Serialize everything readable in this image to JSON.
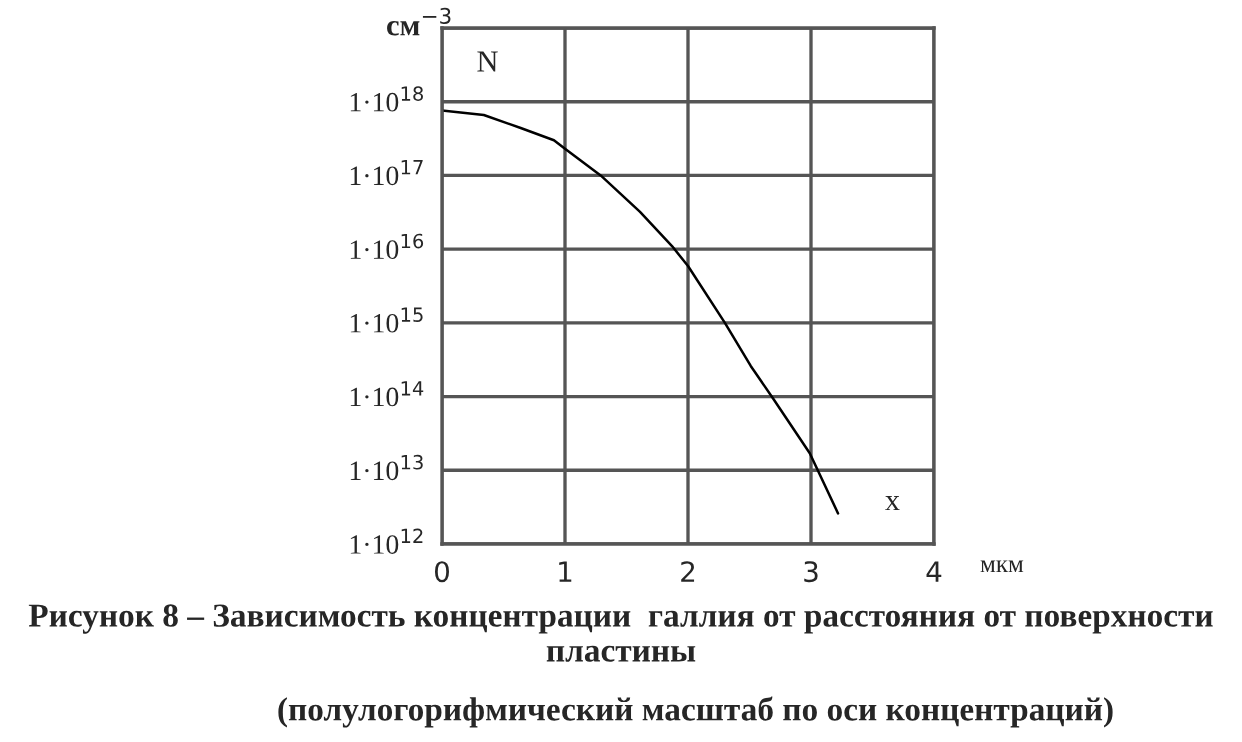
{
  "chart_data": {
    "type": "line",
    "x": [
      0,
      0.34,
      0.64,
      0.91,
      1.0,
      1.29,
      1.61,
      1.87,
      2.0,
      2.3,
      2.51,
      2.7,
      2.99,
      3.22
    ],
    "series": [
      {
        "color": "#000000",
        "values": [
          7.6e+17,
          6.6e+17,
          4.4e+17,
          3e+17,
          2.3e+17,
          1e+17,
          3.2e+16,
          1.1e+16,
          5900000000000000.0,
          1000000000000000.0,
          260000000000000.0,
          90000000000000.0,
          17000000000000.0,
          2600000000000.0
        ]
      }
    ],
    "log": "y",
    "xlim": [
      0,
      4
    ],
    "xticks": [
      0,
      1,
      2,
      3,
      4
    ],
    "ylim": [
      1000000000000.0,
      1e+19
    ],
    "yticks": [
      {
        "value": 1000000000000.0,
        "label": "1·10$^{12}$"
      },
      {
        "value": 10000000000000.0,
        "label": "1·10$^{13}$"
      },
      {
        "value": 100000000000000.0,
        "label": "1·10$^{14}$"
      },
      {
        "value": 1000000000000000.0,
        "label": "1·10$^{15}$"
      },
      {
        "value": 1e+16,
        "label": "1·10$^{16}$"
      },
      {
        "value": 1e+17,
        "label": "1·10$^{17}$"
      },
      {
        "value": 1e+18,
        "label": "1·10$^{18}$"
      },
      {
        "value": 1e+19,
        "label": null
      }
    ],
    "ylabel": "см$^{−3}$",
    "xlabel": "мкм",
    "grid": true,
    "marker": "none",
    "line_style": "solid",
    "annotations": [
      "N",
      "x",
      "Рисунок 8 – Зависимость концентрации  галлия от расстояния от поверхности пластины",
      "(полулогорифмический масштаб по оси концентраций)"
    ]
  }
}
